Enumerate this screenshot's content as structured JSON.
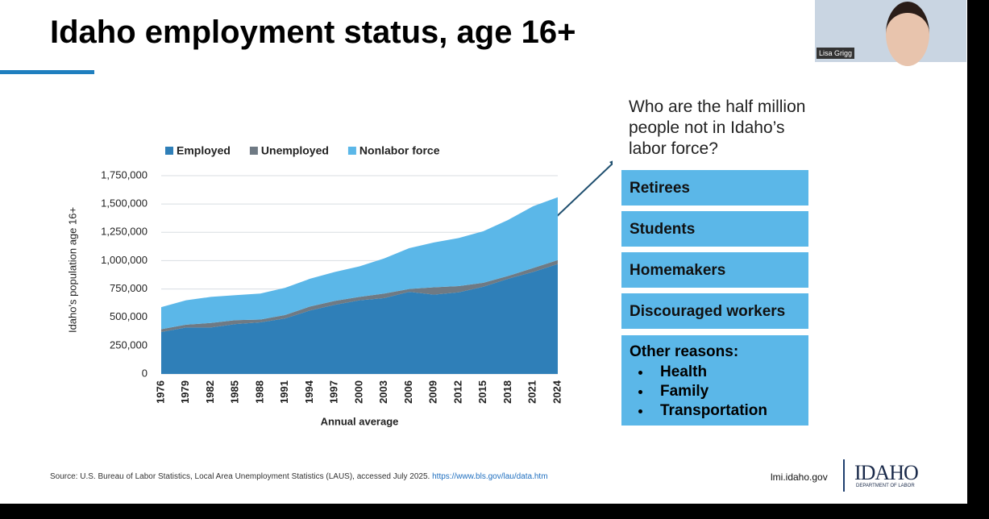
{
  "slide": {
    "title": "Idaho employment status, age 16+",
    "source": "Source: U.S. Bureau of Labor Statistics, Local Area Unemployment Statistics (LAUS), accessed July 2025.",
    "source_link": "https://www.bls.gov/lau/data.htm",
    "site": "lmi.idaho.gov",
    "logo": "IDAHO",
    "logo_sub": "DEPARTMENT OF LABOR"
  },
  "video": {
    "name": "Lisa Grigg"
  },
  "panel": {
    "question": "Who are the half million people not in Idaho’s labor force?",
    "reasons": [
      "Retirees",
      "Students",
      "Homemakers",
      "Discouraged workers"
    ],
    "other_title": "Other reasons:",
    "other_items": [
      "Health",
      "Family",
      "Transportation"
    ]
  },
  "chart_data": {
    "type": "stacked-area",
    "x_label": "Annual average",
    "y_label": "Idaho's population age 16+",
    "x": [
      1976,
      1979,
      1982,
      1985,
      1988,
      1991,
      1994,
      1997,
      2000,
      2003,
      2006,
      2009,
      2012,
      2015,
      2018,
      2021,
      2024
    ],
    "xlim": [
      1976,
      2024
    ],
    "xticks": [
      1976,
      1979,
      1982,
      1985,
      1988,
      1991,
      1994,
      1997,
      2000,
      2003,
      2006,
      2009,
      2012,
      2015,
      2018,
      2021,
      2024
    ],
    "ylim": [
      0,
      1750000
    ],
    "yticks": [
      0,
      {
        "value": 250000,
        "label": "250,000"
      },
      {
        "value": 500000,
        "label": "500,000"
      },
      {
        "value": 750000,
        "label": "750,000"
      },
      {
        "value": 1000000,
        "label": "1,000,000"
      },
      {
        "value": 1250000,
        "label": "1,250,000"
      },
      {
        "value": 1500000,
        "label": "1,500,000"
      },
      {
        "value": 1750000,
        "label": "1,750,000"
      }
    ],
    "grid": true,
    "series": [
      {
        "name": "Employed",
        "color": "#2f7fb8",
        "values": [
          370000,
          410000,
          410000,
          440000,
          455000,
          490000,
          560000,
          610000,
          650000,
          670000,
          725000,
          700000,
          720000,
          770000,
          840000,
          900000,
          970000
        ]
      },
      {
        "name": "Unemployed",
        "color": "#6f7a84",
        "values": [
          25000,
          25000,
          40000,
          35000,
          25000,
          30000,
          35000,
          35000,
          30000,
          40000,
          25000,
          65000,
          55000,
          35000,
          25000,
          35000,
          35000
        ]
      },
      {
        "name": "Nonlabor force",
        "color": "#5bb7e8",
        "values": [
          195000,
          215000,
          230000,
          220000,
          230000,
          240000,
          245000,
          255000,
          270000,
          310000,
          360000,
          395000,
          425000,
          455000,
          495000,
          545000,
          555000
        ]
      }
    ]
  }
}
